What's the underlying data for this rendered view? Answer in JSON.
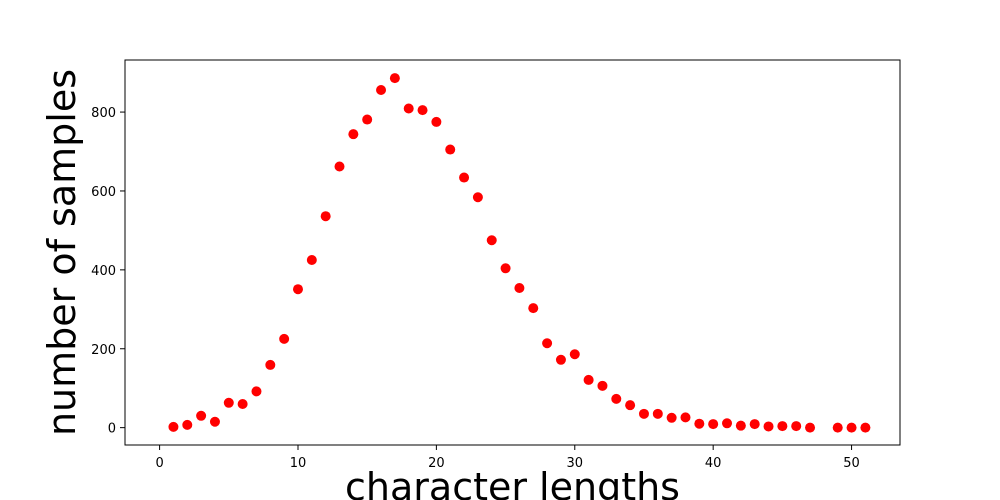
{
  "chart_data": {
    "type": "scatter",
    "title": "",
    "xlabel": "character lengths",
    "ylabel": "number of samples",
    "xlim": [
      -2.5,
      53.5
    ],
    "ylim": [
      -44,
      932
    ],
    "xticks": [
      0,
      10,
      20,
      30,
      40,
      50
    ],
    "yticks": [
      0,
      200,
      400,
      600,
      800
    ],
    "grid": false,
    "legend": "none",
    "marker_color": "#ff0000",
    "x": [
      1,
      2,
      3,
      4,
      5,
      6,
      7,
      8,
      9,
      10,
      11,
      12,
      13,
      14,
      15,
      16,
      17,
      18,
      19,
      20,
      21,
      22,
      23,
      24,
      25,
      26,
      27,
      28,
      29,
      30,
      31,
      32,
      33,
      34,
      35,
      36,
      37,
      38,
      39,
      40,
      41,
      42,
      43,
      44,
      45,
      46,
      47,
      49,
      50,
      51
    ],
    "y": [
      2,
      7,
      30,
      15,
      63,
      60,
      92,
      159,
      225,
      351,
      425,
      536,
      662,
      744,
      781,
      856,
      886,
      809,
      805,
      775,
      705,
      634,
      584,
      475,
      404,
      354,
      303,
      214,
      172,
      186,
      121,
      106,
      73,
      57,
      35,
      35,
      25,
      26,
      10,
      9,
      11,
      5,
      9,
      3,
      4,
      4,
      0,
      0,
      0,
      0
    ]
  }
}
